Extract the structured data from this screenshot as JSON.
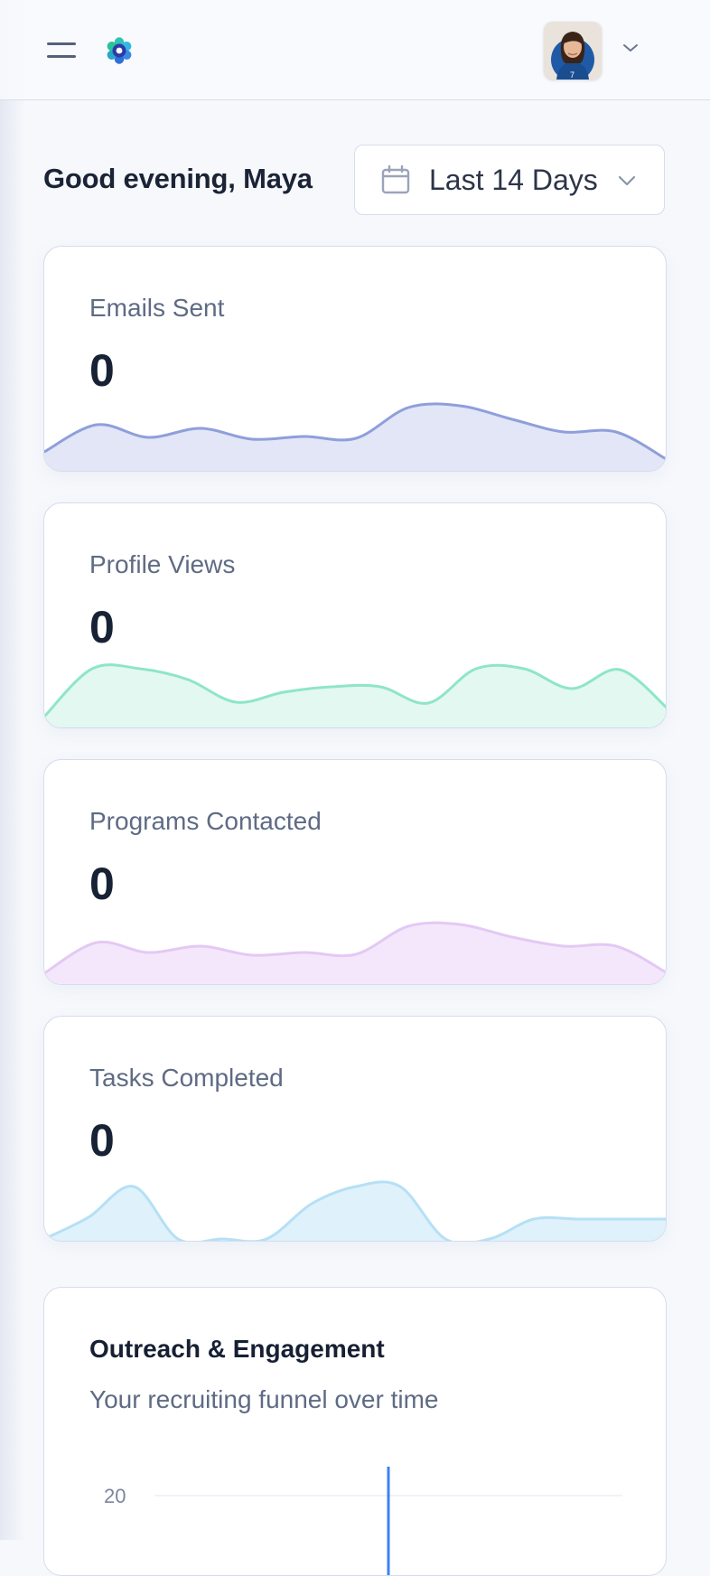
{
  "header": {
    "menu_icon": "hamburger-menu-icon",
    "logo_icon": "flower-logo-icon",
    "avatar_icon": "user-avatar",
    "account_chevron_icon": "chevron-down-icon"
  },
  "greeting": "Good evening, Maya",
  "date_range": {
    "icon": "calendar-icon",
    "selected": "Last 14 Days",
    "chevron_icon": "chevron-down-icon"
  },
  "colors": {
    "emails": "#8f9fdb",
    "emails_fill": "#e2e6f6",
    "views": "#8ee6c6",
    "views_fill": "#e3f8f0",
    "programs": "#e3c9f4",
    "programs_fill": "#f4e7fc",
    "tasks": "#b5e0f5",
    "tasks_fill": "#dff1fb",
    "chart_line": "#3b82f6"
  },
  "stats": [
    {
      "label": "Emails Sent",
      "value": "0",
      "series": [
        2,
        5,
        3.6,
        4.6,
        3.4,
        3.7,
        3.5,
        7,
        7.2,
        5.6,
        4.2,
        4.2,
        1
      ],
      "color_key": "emails"
    },
    {
      "label": "Profile Views",
      "value": "0",
      "series": [
        1,
        6.5,
        6.5,
        5.2,
        2.7,
        3.8,
        4.4,
        4.4,
        2.6,
        6.5,
        6.5,
        4.2,
        6.4,
        2
      ],
      "color_key": "views"
    },
    {
      "label": "Programs Contacted",
      "value": "0",
      "series": [
        1,
        4.5,
        3.4,
        4.1,
        3.1,
        3.4,
        3.2,
        6.4,
        6.6,
        5.1,
        4.1,
        4.1,
        1
      ],
      "color_key": "programs"
    },
    {
      "label": "Tasks Completed",
      "value": "0",
      "series": [
        0,
        2.5,
        6,
        0,
        0,
        0,
        4,
        6,
        6,
        0,
        0,
        2.3,
        2.3,
        2.3,
        2.3
      ],
      "color_key": "tasks"
    }
  ],
  "outreach": {
    "title": "Outreach & Engagement",
    "subtitle": "Your recruiting funnel over time",
    "chart_data": {
      "type": "line",
      "title": "Outreach & Engagement",
      "subtitle": "Your recruiting funnel over time",
      "y_ticks": [
        20
      ],
      "ylim": [
        0,
        20
      ],
      "grid": true,
      "x_marker": 0.5
    }
  }
}
